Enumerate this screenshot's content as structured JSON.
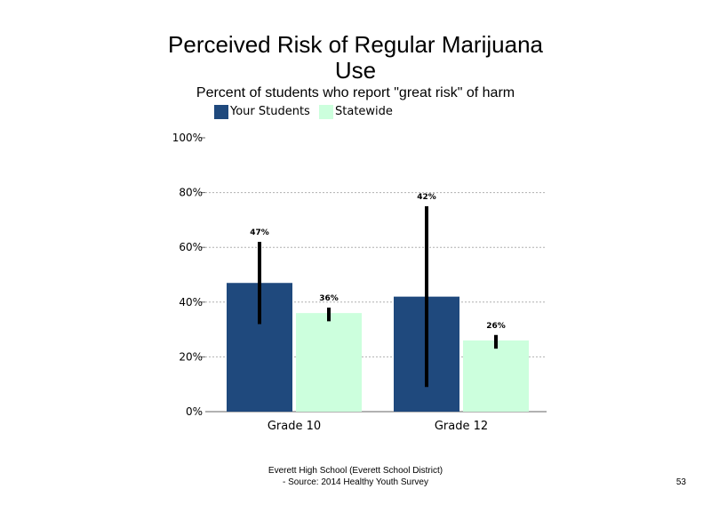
{
  "slide": {
    "title_line1": "Perceived Risk of Regular Marijuana",
    "title_line2": "Use",
    "subtitle": "Percent of students who report \"great risk\" of harm",
    "footer_line1": "Everett High  School (Everett School District)",
    "footer_line2": "- Source: 2014 Healthy  Youth Survey",
    "page_number": "53"
  },
  "chart_data": {
    "type": "bar",
    "title": "Perceived Risk of Regular Marijuana Use",
    "subtitle": "Percent of students who report \"great risk\" of harm",
    "categories": [
      "Grade 10",
      "Grade 12"
    ],
    "series": [
      {
        "name": "Your Students",
        "color": "#1f497d",
        "values": [
          47,
          42
        ],
        "labels": [
          "47%",
          "42%"
        ],
        "error_low": [
          32,
          9
        ],
        "error_high": [
          62,
          75
        ]
      },
      {
        "name": "Statewide",
        "color": "#ccffdd",
        "values": [
          36,
          26
        ],
        "labels": [
          "36%",
          "26%"
        ],
        "error_low": [
          33,
          23
        ],
        "error_high": [
          38,
          28
        ]
      }
    ],
    "ylim": [
      0,
      100
    ],
    "yticks": [
      "0%",
      "20%",
      "40%",
      "60%",
      "80%",
      "100%"
    ],
    "ytick_values": [
      0,
      20,
      40,
      60,
      80,
      100
    ],
    "grid": true,
    "legend": "top-left",
    "xlabel": "",
    "ylabel": ""
  }
}
